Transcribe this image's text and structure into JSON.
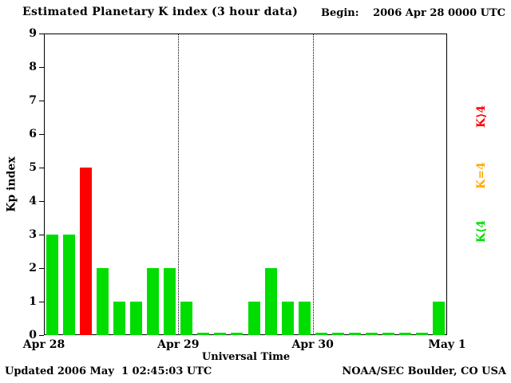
{
  "header": {
    "title": "Estimated Planetary K index (3 hour data)",
    "begin_label": "Begin:",
    "begin_value": "2006 Apr 28 0000 UTC"
  },
  "footer": {
    "updated": "Updated 2006 May  1 02:45:03 UTC",
    "credit": "NOAA/SEC Boulder, CO USA"
  },
  "legend": [
    {
      "label": "K⟩4",
      "color": "#ff0000",
      "meaning": "Kp greater than 4"
    },
    {
      "label": "K=4",
      "color": "#ffaa00",
      "meaning": "Kp equal to 4"
    },
    {
      "label": "K⟨4",
      "color": "#00dd00",
      "meaning": "Kp less than 4"
    }
  ],
  "chart_data": {
    "type": "bar",
    "title": "Estimated Planetary K index (3 hour data)",
    "xlabel": "Universal Time",
    "ylabel": "Kp index",
    "ylim": [
      0,
      9
    ],
    "yticks": [
      0,
      1,
      2,
      3,
      4,
      5,
      6,
      7,
      8,
      9
    ],
    "interval_hours": 3,
    "slots_per_day": 8,
    "day_labels": [
      "Apr 28",
      "Apr 29",
      "Apr 30",
      "May 1"
    ],
    "values": [
      3,
      3,
      5,
      2,
      1,
      1,
      2,
      2,
      1,
      0,
      0,
      0,
      1,
      2,
      1,
      1,
      0,
      0,
      0,
      0,
      0,
      0,
      0,
      1
    ],
    "colors": {
      "k_lt_4": "#00dd00",
      "k_eq_4": "#ffaa00",
      "k_gt_4": "#ff0000"
    },
    "grid": "none",
    "day_separator_style": "dotted",
    "legend_position": "right"
  }
}
